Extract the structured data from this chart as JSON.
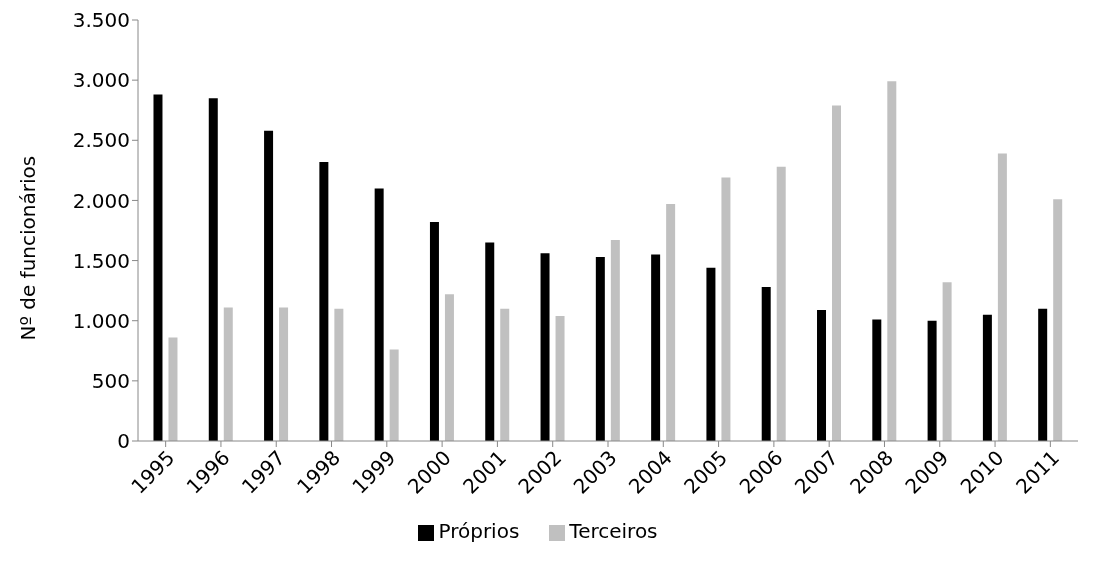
{
  "chart_data": {
    "type": "bar",
    "ylabel": "Nº de funcionários",
    "categories": [
      "1995",
      "1996",
      "1997",
      "1998",
      "1999",
      "2000",
      "2001",
      "2002",
      "2003",
      "2004",
      "2005",
      "2006",
      "2007",
      "2008",
      "2009",
      "2010",
      "2011"
    ],
    "series": [
      {
        "name": "Próprios",
        "color": "#000000",
        "values": [
          2880,
          2850,
          2580,
          2320,
          2100,
          1820,
          1650,
          1560,
          1530,
          1550,
          1440,
          1280,
          1090,
          1010,
          1000,
          1050,
          1100
        ]
      },
      {
        "name": "Terceiros",
        "color": "#c0c0c0",
        "values": [
          860,
          1110,
          1110,
          1100,
          760,
          1220,
          1100,
          1040,
          1670,
          1970,
          2190,
          2280,
          2790,
          2990,
          1320,
          2390,
          2010
        ]
      }
    ],
    "ylim": [
      0,
      3500
    ],
    "yticks": [
      0,
      {
        "value": 500,
        "label": "500"
      },
      {
        "value": 1000,
        "label": "1.000"
      },
      {
        "value": 1500,
        "label": "1.500"
      },
      {
        "value": 2000,
        "label": "2.000"
      },
      {
        "value": 2500,
        "label": "2.500"
      },
      {
        "value": 3000,
        "label": "3.000"
      },
      {
        "value": 3500,
        "label": "3.500"
      }
    ],
    "grid": false,
    "legend": "bottom"
  }
}
